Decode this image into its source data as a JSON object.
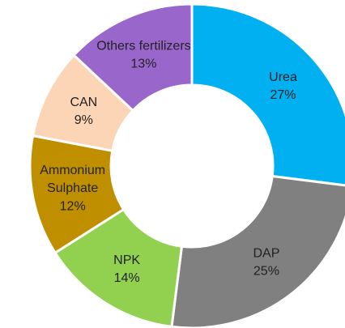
{
  "chart_data": {
    "type": "donut",
    "categories": [
      "Urea",
      "DAP",
      "NPK",
      "Ammonium Sulphate",
      "CAN",
      "Others fertilizers"
    ],
    "values": [
      27,
      25,
      14,
      12,
      9,
      13
    ],
    "value_labels": [
      "27%",
      "25%",
      "14%",
      "12%",
      "9%",
      "13%"
    ],
    "colors": [
      "#00b0f0",
      "#808080",
      "#92d050",
      "#bf8f00",
      "#fbd5b5",
      "#9966cc"
    ]
  }
}
